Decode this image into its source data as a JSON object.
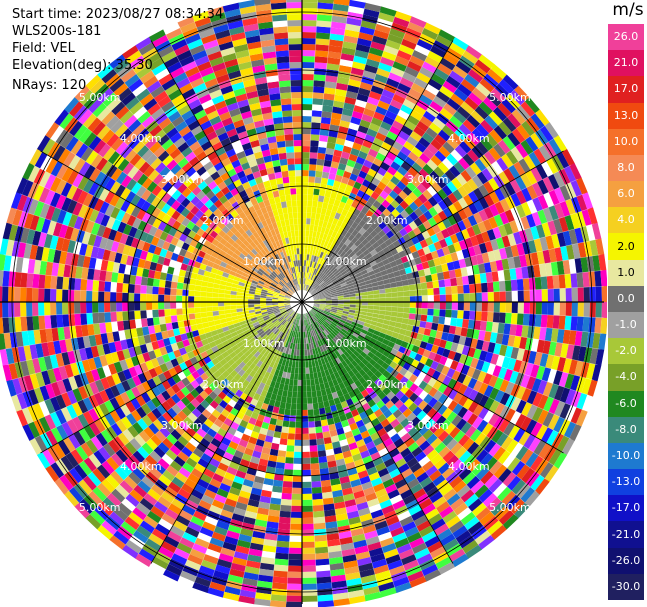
{
  "info": {
    "start_time": "Start time: 2023/08/27 08:34:34",
    "station": "WLS200s-181",
    "field": "Field: VEL",
    "elevation": "Elevation(deg): 35.30",
    "nrays": "NRays: 120"
  },
  "colorbar": {
    "unit": "m/s",
    "ticks": [
      "26.0",
      "21.0",
      "17.0",
      "13.0",
      "10.0",
      "8.0",
      "6.0",
      "4.0",
      "2.0",
      "1.0",
      "0.0",
      "-1.0",
      "-2.0",
      "-4.0",
      "-6.0",
      "-8.0",
      "-10.0",
      "-13.0",
      "-17.0",
      "-21.0",
      "-26.0",
      "-30.0"
    ],
    "colors": [
      "#f0409a",
      "#e01060",
      "#e02020",
      "#f04a10",
      "#f5702a",
      "#f58a55",
      "#f5a040",
      "#f5d020",
      "#f5f500",
      "#e8e8a0",
      "#707070",
      "#a0a0a0",
      "#a8c838",
      "#78a028",
      "#208820",
      "#3a8a7a",
      "#1e7ad0",
      "#1040e0",
      "#1010c8",
      "#101090",
      "#101070",
      "#202060"
    ]
  },
  "range_rings": {
    "labels": [
      "1.00km",
      "2.00km",
      "3.00km",
      "4.00km",
      "5.00km"
    ]
  }
}
